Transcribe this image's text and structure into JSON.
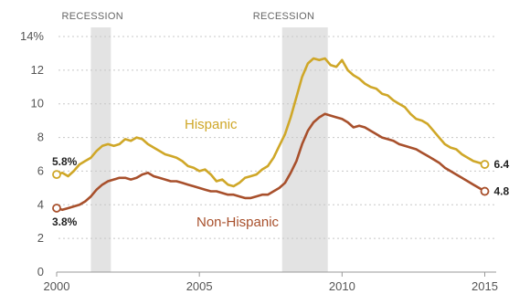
{
  "chart_data": {
    "type": "line",
    "title": "",
    "xlabel": "",
    "ylabel": "",
    "xlim": [
      2000,
      2015.4
    ],
    "ylim": [
      0,
      14
    ],
    "x_ticks": [
      2000,
      2005,
      2010,
      2015
    ],
    "y_ticks": [
      {
        "value": 0,
        "label": "0"
      },
      {
        "value": 2,
        "label": "2"
      },
      {
        "value": 4,
        "label": "4"
      },
      {
        "value": 6,
        "label": "6"
      },
      {
        "value": 8,
        "label": "8"
      },
      {
        "value": 10,
        "label": "10"
      },
      {
        "value": 12,
        "label": "12"
      },
      {
        "value": 14,
        "label": "14%"
      }
    ],
    "grid": "horizontal",
    "recessions": [
      {
        "label": "RECESSION",
        "start": 2001.2,
        "end": 2001.9
      },
      {
        "label": "RECESSION",
        "start": 2007.9,
        "end": 2009.5
      }
    ],
    "series": [
      {
        "name": "Hispanic",
        "color": "#cfa728",
        "start_label": "5.8%",
        "end_label": "6.4",
        "points": [
          [
            2000.0,
            5.8
          ],
          [
            2000.2,
            5.9
          ],
          [
            2000.4,
            5.7
          ],
          [
            2000.6,
            6.0
          ],
          [
            2000.8,
            6.4
          ],
          [
            2001.0,
            6.6
          ],
          [
            2001.2,
            6.8
          ],
          [
            2001.4,
            7.2
          ],
          [
            2001.6,
            7.5
          ],
          [
            2001.8,
            7.6
          ],
          [
            2002.0,
            7.5
          ],
          [
            2002.2,
            7.6
          ],
          [
            2002.4,
            7.9
          ],
          [
            2002.6,
            7.8
          ],
          [
            2002.8,
            8.0
          ],
          [
            2003.0,
            7.9
          ],
          [
            2003.2,
            7.6
          ],
          [
            2003.4,
            7.4
          ],
          [
            2003.6,
            7.2
          ],
          [
            2003.8,
            7.0
          ],
          [
            2004.0,
            6.9
          ],
          [
            2004.2,
            6.8
          ],
          [
            2004.4,
            6.6
          ],
          [
            2004.6,
            6.3
          ],
          [
            2004.8,
            6.2
          ],
          [
            2005.0,
            6.0
          ],
          [
            2005.2,
            6.1
          ],
          [
            2005.4,
            5.8
          ],
          [
            2005.6,
            5.4
          ],
          [
            2005.8,
            5.5
          ],
          [
            2006.0,
            5.2
          ],
          [
            2006.2,
            5.1
          ],
          [
            2006.4,
            5.3
          ],
          [
            2006.6,
            5.6
          ],
          [
            2006.8,
            5.7
          ],
          [
            2007.0,
            5.8
          ],
          [
            2007.2,
            6.1
          ],
          [
            2007.4,
            6.3
          ],
          [
            2007.6,
            6.8
          ],
          [
            2007.8,
            7.5
          ],
          [
            2008.0,
            8.2
          ],
          [
            2008.2,
            9.2
          ],
          [
            2008.4,
            10.4
          ],
          [
            2008.6,
            11.6
          ],
          [
            2008.8,
            12.4
          ],
          [
            2009.0,
            12.7
          ],
          [
            2009.2,
            12.6
          ],
          [
            2009.4,
            12.7
          ],
          [
            2009.6,
            12.3
          ],
          [
            2009.8,
            12.2
          ],
          [
            2010.0,
            12.6
          ],
          [
            2010.2,
            12.0
          ],
          [
            2010.4,
            11.7
          ],
          [
            2010.6,
            11.5
          ],
          [
            2010.8,
            11.2
          ],
          [
            2011.0,
            11.0
          ],
          [
            2011.2,
            10.9
          ],
          [
            2011.4,
            10.6
          ],
          [
            2011.6,
            10.5
          ],
          [
            2011.8,
            10.2
          ],
          [
            2012.0,
            10.0
          ],
          [
            2012.2,
            9.8
          ],
          [
            2012.4,
            9.4
          ],
          [
            2012.6,
            9.1
          ],
          [
            2012.8,
            9.0
          ],
          [
            2013.0,
            8.8
          ],
          [
            2013.2,
            8.4
          ],
          [
            2013.4,
            8.0
          ],
          [
            2013.6,
            7.6
          ],
          [
            2013.8,
            7.4
          ],
          [
            2014.0,
            7.3
          ],
          [
            2014.2,
            7.0
          ],
          [
            2014.4,
            6.8
          ],
          [
            2014.6,
            6.6
          ],
          [
            2014.8,
            6.5
          ],
          [
            2015.0,
            6.4
          ]
        ]
      },
      {
        "name": "Non-Hispanic",
        "color": "#a8502c",
        "start_label": "3.8%",
        "end_label": "4.8",
        "points": [
          [
            2000.0,
            3.8
          ],
          [
            2000.2,
            3.7
          ],
          [
            2000.4,
            3.8
          ],
          [
            2000.6,
            3.9
          ],
          [
            2000.8,
            4.0
          ],
          [
            2001.0,
            4.2
          ],
          [
            2001.2,
            4.5
          ],
          [
            2001.4,
            4.9
          ],
          [
            2001.6,
            5.2
          ],
          [
            2001.8,
            5.4
          ],
          [
            2002.0,
            5.5
          ],
          [
            2002.2,
            5.6
          ],
          [
            2002.4,
            5.6
          ],
          [
            2002.6,
            5.5
          ],
          [
            2002.8,
            5.6
          ],
          [
            2003.0,
            5.8
          ],
          [
            2003.2,
            5.9
          ],
          [
            2003.4,
            5.7
          ],
          [
            2003.6,
            5.6
          ],
          [
            2003.8,
            5.5
          ],
          [
            2004.0,
            5.4
          ],
          [
            2004.2,
            5.4
          ],
          [
            2004.4,
            5.3
          ],
          [
            2004.6,
            5.2
          ],
          [
            2004.8,
            5.1
          ],
          [
            2005.0,
            5.0
          ],
          [
            2005.2,
            4.9
          ],
          [
            2005.4,
            4.8
          ],
          [
            2005.6,
            4.8
          ],
          [
            2005.8,
            4.7
          ],
          [
            2006.0,
            4.6
          ],
          [
            2006.2,
            4.6
          ],
          [
            2006.4,
            4.5
          ],
          [
            2006.6,
            4.4
          ],
          [
            2006.8,
            4.4
          ],
          [
            2007.0,
            4.5
          ],
          [
            2007.2,
            4.6
          ],
          [
            2007.4,
            4.6
          ],
          [
            2007.6,
            4.8
          ],
          [
            2007.8,
            5.0
          ],
          [
            2008.0,
            5.3
          ],
          [
            2008.2,
            5.9
          ],
          [
            2008.4,
            6.6
          ],
          [
            2008.6,
            7.6
          ],
          [
            2008.8,
            8.4
          ],
          [
            2009.0,
            8.9
          ],
          [
            2009.2,
            9.2
          ],
          [
            2009.4,
            9.4
          ],
          [
            2009.6,
            9.3
          ],
          [
            2009.8,
            9.2
          ],
          [
            2010.0,
            9.1
          ],
          [
            2010.2,
            8.9
          ],
          [
            2010.4,
            8.6
          ],
          [
            2010.6,
            8.7
          ],
          [
            2010.8,
            8.6
          ],
          [
            2011.0,
            8.4
          ],
          [
            2011.2,
            8.2
          ],
          [
            2011.4,
            8.0
          ],
          [
            2011.6,
            7.9
          ],
          [
            2011.8,
            7.8
          ],
          [
            2012.0,
            7.6
          ],
          [
            2012.2,
            7.5
          ],
          [
            2012.4,
            7.4
          ],
          [
            2012.6,
            7.3
          ],
          [
            2012.8,
            7.1
          ],
          [
            2013.0,
            6.9
          ],
          [
            2013.2,
            6.7
          ],
          [
            2013.4,
            6.5
          ],
          [
            2013.6,
            6.2
          ],
          [
            2013.8,
            6.0
          ],
          [
            2014.0,
            5.8
          ],
          [
            2014.2,
            5.6
          ],
          [
            2014.4,
            5.4
          ],
          [
            2014.6,
            5.2
          ],
          [
            2014.8,
            5.0
          ],
          [
            2015.0,
            4.8
          ]
        ]
      }
    ]
  }
}
